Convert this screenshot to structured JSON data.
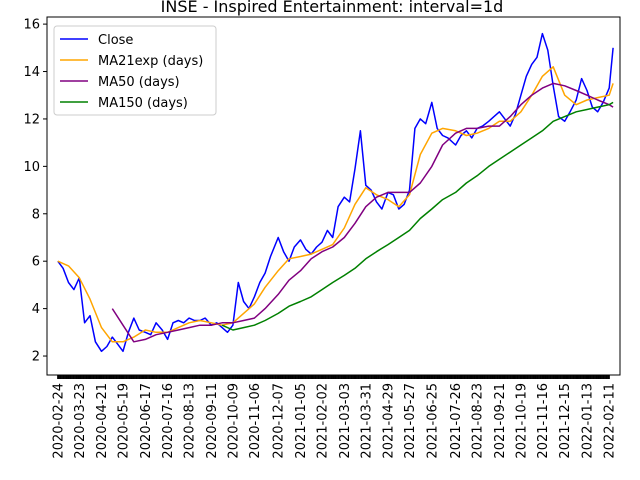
{
  "chart_data": {
    "type": "line",
    "title": "INSE - Inspired Entertainment: interval=1d",
    "xlabel": "",
    "ylabel": "",
    "ylim": [
      1.2,
      16.3
    ],
    "yticks": [
      2,
      4,
      6,
      8,
      10,
      12,
      14,
      16
    ],
    "xlim": [
      "2020-02-10",
      "2022-02-25"
    ],
    "xticks": [
      "2020-02-24",
      "2020-03-23",
      "2020-04-21",
      "2020-05-19",
      "2020-06-17",
      "2020-07-16",
      "2020-08-13",
      "2020-09-11",
      "2020-10-09",
      "2020-11-06",
      "2020-12-07",
      "2021-01-05",
      "2021-02-02",
      "2021-03-03",
      "2021-03-31",
      "2021-04-29",
      "2021-05-27",
      "2021-06-25",
      "2021-07-26",
      "2021-08-23",
      "2021-09-21",
      "2021-10-19",
      "2021-11-16",
      "2021-12-15",
      "2022-01-13",
      "2022-02-11"
    ],
    "grid": false,
    "legend_position": "top-left",
    "series": [
      {
        "name": "Close",
        "color": "#0000ff",
        "x": [
          "2020-02-24",
          "2020-03-02",
          "2020-03-09",
          "2020-03-16",
          "2020-03-23",
          "2020-03-30",
          "2020-04-06",
          "2020-04-13",
          "2020-04-21",
          "2020-04-28",
          "2020-05-05",
          "2020-05-12",
          "2020-05-19",
          "2020-05-26",
          "2020-06-02",
          "2020-06-09",
          "2020-06-17",
          "2020-06-24",
          "2020-07-01",
          "2020-07-09",
          "2020-07-16",
          "2020-07-23",
          "2020-07-30",
          "2020-08-06",
          "2020-08-13",
          "2020-08-20",
          "2020-08-27",
          "2020-09-03",
          "2020-09-11",
          "2020-09-18",
          "2020-09-25",
          "2020-10-02",
          "2020-10-09",
          "2020-10-16",
          "2020-10-23",
          "2020-10-30",
          "2020-11-06",
          "2020-11-13",
          "2020-11-20",
          "2020-11-27",
          "2020-12-07",
          "2020-12-14",
          "2020-12-21",
          "2020-12-28",
          "2021-01-05",
          "2021-01-12",
          "2021-01-19",
          "2021-01-26",
          "2021-02-02",
          "2021-02-09",
          "2021-02-16",
          "2021-02-23",
          "2021-03-03",
          "2021-03-10",
          "2021-03-17",
          "2021-03-24",
          "2021-03-31",
          "2021-04-07",
          "2021-04-14",
          "2021-04-21",
          "2021-04-29",
          "2021-05-06",
          "2021-05-13",
          "2021-05-20",
          "2021-05-27",
          "2021-06-03",
          "2021-06-10",
          "2021-06-17",
          "2021-06-25",
          "2021-07-02",
          "2021-07-09",
          "2021-07-16",
          "2021-07-26",
          "2021-08-02",
          "2021-08-09",
          "2021-08-16",
          "2021-08-23",
          "2021-08-30",
          "2021-09-07",
          "2021-09-14",
          "2021-09-21",
          "2021-09-28",
          "2021-10-05",
          "2021-10-12",
          "2021-10-19",
          "2021-10-26",
          "2021-11-02",
          "2021-11-09",
          "2021-11-16",
          "2021-11-23",
          "2021-11-30",
          "2021-12-07",
          "2021-12-15",
          "2021-12-22",
          "2021-12-30",
          "2022-01-06",
          "2022-01-13",
          "2022-01-20",
          "2022-01-27",
          "2022-02-03",
          "2022-02-11",
          "2022-02-16"
        ],
        "y": [
          6.0,
          5.7,
          5.1,
          4.8,
          5.3,
          3.4,
          3.7,
          2.6,
          2.2,
          2.4,
          2.8,
          2.5,
          2.2,
          3.0,
          3.6,
          3.1,
          3.0,
          2.9,
          3.4,
          3.1,
          2.7,
          3.4,
          3.5,
          3.4,
          3.6,
          3.5,
          3.5,
          3.6,
          3.3,
          3.4,
          3.2,
          3.0,
          3.3,
          5.1,
          4.3,
          4.0,
          4.5,
          5.1,
          5.5,
          6.2,
          7.0,
          6.4,
          6.0,
          6.6,
          6.9,
          6.5,
          6.3,
          6.6,
          6.8,
          7.3,
          7.0,
          8.3,
          8.7,
          8.5,
          9.9,
          11.5,
          9.2,
          9.0,
          8.5,
          8.2,
          8.9,
          8.8,
          8.2,
          8.4,
          9.0,
          11.6,
          12.0,
          11.8,
          12.7,
          11.6,
          11.3,
          11.2,
          10.9,
          11.3,
          11.5,
          11.2,
          11.6,
          11.7,
          11.9,
          12.1,
          12.3,
          12.0,
          11.7,
          12.2,
          13.0,
          13.8,
          14.3,
          14.6,
          15.6,
          14.9,
          13.4,
          12.1,
          11.9,
          12.3,
          12.8,
          13.7,
          13.2,
          12.5,
          12.3,
          12.7,
          13.3,
          15.0
        ]
      },
      {
        "name": "MA21exp (days)",
        "color": "#ffa500",
        "x": [
          "2020-02-24",
          "2020-03-09",
          "2020-03-23",
          "2020-04-06",
          "2020-04-21",
          "2020-05-05",
          "2020-05-19",
          "2020-06-02",
          "2020-06-17",
          "2020-07-01",
          "2020-07-16",
          "2020-07-30",
          "2020-08-13",
          "2020-08-27",
          "2020-09-11",
          "2020-09-25",
          "2020-10-09",
          "2020-10-23",
          "2020-11-06",
          "2020-11-20",
          "2020-12-07",
          "2020-12-21",
          "2021-01-05",
          "2021-01-19",
          "2021-02-02",
          "2021-02-16",
          "2021-03-03",
          "2021-03-17",
          "2021-03-31",
          "2021-04-14",
          "2021-04-29",
          "2021-05-13",
          "2021-05-27",
          "2021-06-10",
          "2021-06-25",
          "2021-07-09",
          "2021-07-26",
          "2021-08-09",
          "2021-08-23",
          "2021-09-07",
          "2021-09-21",
          "2021-10-05",
          "2021-10-19",
          "2021-11-02",
          "2021-11-16",
          "2021-11-30",
          "2021-12-15",
          "2021-12-30",
          "2022-01-13",
          "2022-01-27",
          "2022-02-11",
          "2022-02-16"
        ],
        "y": [
          6.0,
          5.8,
          5.3,
          4.4,
          3.2,
          2.6,
          2.6,
          2.8,
          3.1,
          3.0,
          3.0,
          3.2,
          3.4,
          3.5,
          3.4,
          3.3,
          3.4,
          3.8,
          4.2,
          4.9,
          5.6,
          6.1,
          6.2,
          6.3,
          6.5,
          6.7,
          7.4,
          8.4,
          9.1,
          8.8,
          8.6,
          8.3,
          8.8,
          10.5,
          11.4,
          11.6,
          11.5,
          11.3,
          11.4,
          11.6,
          11.9,
          11.9,
          12.3,
          13.0,
          13.8,
          14.2,
          13.0,
          12.6,
          12.8,
          12.9,
          13.0,
          13.5
        ]
      },
      {
        "name": "MA50 (days)",
        "color": "#800080",
        "x": [
          "2020-05-05",
          "2020-05-19",
          "2020-06-02",
          "2020-06-17",
          "2020-07-01",
          "2020-07-16",
          "2020-07-30",
          "2020-08-13",
          "2020-08-27",
          "2020-09-11",
          "2020-09-25",
          "2020-10-09",
          "2020-10-23",
          "2020-11-06",
          "2020-11-20",
          "2020-12-07",
          "2020-12-21",
          "2021-01-05",
          "2021-01-19",
          "2021-02-02",
          "2021-02-16",
          "2021-03-03",
          "2021-03-17",
          "2021-03-31",
          "2021-04-14",
          "2021-04-29",
          "2021-05-13",
          "2021-05-27",
          "2021-06-10",
          "2021-06-25",
          "2021-07-09",
          "2021-07-26",
          "2021-08-09",
          "2021-08-23",
          "2021-09-07",
          "2021-09-21",
          "2021-10-05",
          "2021-10-19",
          "2021-11-02",
          "2021-11-16",
          "2021-11-30",
          "2021-12-15",
          "2021-12-30",
          "2022-01-13",
          "2022-01-27",
          "2022-02-11",
          "2022-02-16"
        ],
        "y": [
          4.0,
          3.3,
          2.6,
          2.7,
          2.9,
          3.0,
          3.1,
          3.2,
          3.3,
          3.3,
          3.4,
          3.4,
          3.5,
          3.6,
          4.0,
          4.6,
          5.2,
          5.6,
          6.1,
          6.4,
          6.6,
          7.0,
          7.6,
          8.3,
          8.7,
          8.9,
          8.9,
          8.9,
          9.3,
          10.0,
          10.9,
          11.4,
          11.6,
          11.6,
          11.7,
          11.7,
          12.1,
          12.6,
          13.0,
          13.3,
          13.5,
          13.4,
          13.2,
          13.0,
          12.8,
          12.6,
          12.5
        ]
      },
      {
        "name": "MA150 (days)",
        "color": "#008000",
        "x": [
          "2020-09-25",
          "2020-10-09",
          "2020-10-23",
          "2020-11-06",
          "2020-11-20",
          "2020-12-07",
          "2020-12-21",
          "2021-01-05",
          "2021-01-19",
          "2021-02-02",
          "2021-02-16",
          "2021-03-03",
          "2021-03-17",
          "2021-03-31",
          "2021-04-14",
          "2021-04-29",
          "2021-05-13",
          "2021-05-27",
          "2021-06-10",
          "2021-06-25",
          "2021-07-09",
          "2021-07-26",
          "2021-08-09",
          "2021-08-23",
          "2021-09-07",
          "2021-09-21",
          "2021-10-05",
          "2021-10-19",
          "2021-11-02",
          "2021-11-16",
          "2021-11-30",
          "2021-12-15",
          "2021-12-30",
          "2022-01-13",
          "2022-01-27",
          "2022-02-11",
          "2022-02-16"
        ],
        "y": [
          3.3,
          3.1,
          3.2,
          3.3,
          3.5,
          3.8,
          4.1,
          4.3,
          4.5,
          4.8,
          5.1,
          5.4,
          5.7,
          6.1,
          6.4,
          6.7,
          7.0,
          7.3,
          7.8,
          8.2,
          8.6,
          8.9,
          9.3,
          9.6,
          10.0,
          10.3,
          10.6,
          10.9,
          11.2,
          11.5,
          11.9,
          12.1,
          12.3,
          12.4,
          12.5,
          12.6,
          12.7
        ]
      }
    ]
  }
}
